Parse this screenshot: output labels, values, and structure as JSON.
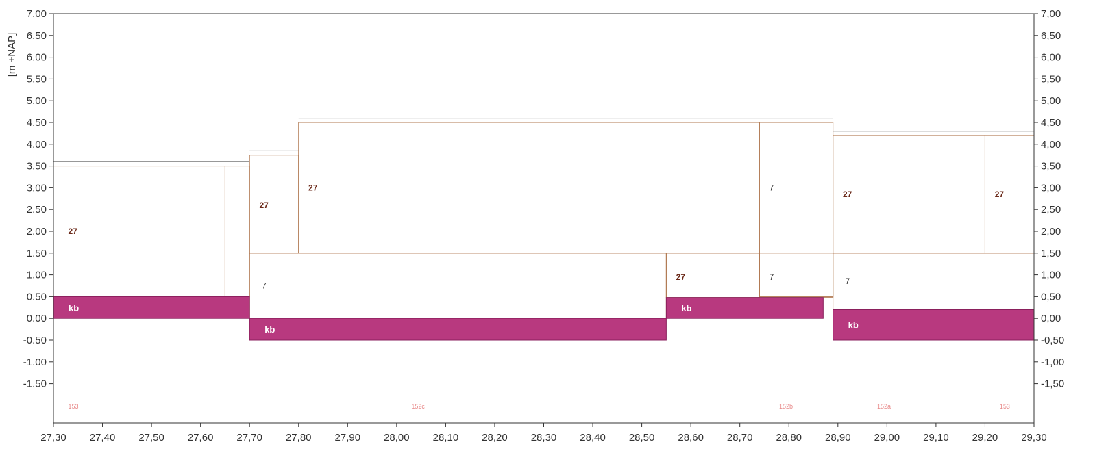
{
  "chart_data": {
    "type": "area",
    "title": "",
    "ylabel": "[m +NAP]",
    "xlim": [
      27.3,
      29.3
    ],
    "ylim": [
      -2.0,
      7.0
    ],
    "grid": false,
    "x_ticks": [
      "27,30",
      "27,40",
      "27,50",
      "27,60",
      "27,70",
      "27,80",
      "27,90",
      "28,00",
      "28,10",
      "28,20",
      "28,30",
      "28,40",
      "28,50",
      "28,60",
      "28,70",
      "28,80",
      "28,90",
      "29,00",
      "29,10",
      "29,20",
      "29,30"
    ],
    "y_ticks_left": [
      "7.00",
      "6.50",
      "6.00",
      "5.50",
      "5.00",
      "4.50",
      "4.00",
      "3.50",
      "3.00",
      "2.50",
      "2.00",
      "1.50",
      "1.00",
      "0.50",
      "0.00",
      "-0.50",
      "-1.00",
      "-1.50"
    ],
    "y_ticks_right": [
      "7,00",
      "6,50",
      "6,00",
      "5,50",
      "5,00",
      "4,50",
      "4,00",
      "3,50",
      "3,00",
      "2,50",
      "2,00",
      "1,50",
      "1,00",
      "0,50",
      "0,00",
      "-0,50",
      "-1,00",
      "-1,50"
    ],
    "layers": [
      {
        "label": "kb",
        "x_start": 27.3,
        "x_end": 27.7,
        "y_bottom": 0.0,
        "y_top": 0.5
      },
      {
        "label": "kb",
        "x_start": 27.7,
        "x_end": 28.55,
        "y_bottom": -0.5,
        "y_top": 0.0
      },
      {
        "label": "kb",
        "x_start": 28.55,
        "x_end": 28.87,
        "y_bottom": 0.0,
        "y_top": 0.48
      },
      {
        "label": "kb",
        "x_start": 28.89,
        "x_end": 29.3,
        "y_bottom": -0.5,
        "y_top": 0.2
      }
    ],
    "profile_cells": [
      {
        "x_start": 27.3,
        "x_end": 27.65,
        "y_bottom": 0.5,
        "y_top": 3.5
      },
      {
        "x_start": 27.65,
        "x_end": 27.7,
        "y_bottom": 0.5,
        "y_top": 3.5
      },
      {
        "x_start": 27.7,
        "x_end": 27.8,
        "y_bottom": 1.5,
        "y_top": 3.75
      },
      {
        "x_start": 27.8,
        "x_end": 28.74,
        "y_bottom": 1.5,
        "y_top": 4.5
      },
      {
        "x_start": 28.74,
        "x_end": 28.89,
        "y_bottom": 0.5,
        "y_top": 4.5
      },
      {
        "x_start": 28.89,
        "x_end": 29.2,
        "y_bottom": 1.5,
        "y_top": 4.2
      },
      {
        "x_start": 29.2,
        "x_end": 29.3,
        "y_bottom": 1.5,
        "y_top": 4.2
      },
      {
        "x_start": 27.7,
        "x_end": 28.55,
        "y_bottom": 0.0,
        "y_top": 1.5
      },
      {
        "x_start": 28.55,
        "x_end": 28.74,
        "y_bottom": 0.48,
        "y_top": 1.5
      },
      {
        "x_start": 28.74,
        "x_end": 28.89,
        "y_bottom": 0.48,
        "y_top": 1.5
      },
      {
        "x_start": 28.89,
        "x_end": 29.3,
        "y_bottom": 0.2,
        "y_top": 1.5
      }
    ],
    "surface_lines": [
      {
        "x_start": 27.3,
        "x_end": 27.7,
        "y": 3.6
      },
      {
        "x_start": 27.7,
        "x_end": 27.8,
        "y": 3.85
      },
      {
        "x_start": 27.8,
        "x_end": 28.89,
        "y": 4.6
      },
      {
        "x_start": 28.89,
        "x_end": 29.3,
        "y": 4.3
      }
    ],
    "annotations": [
      {
        "text": "27",
        "x": 27.33,
        "y": 2.0,
        "style": "dark"
      },
      {
        "text": "27",
        "x": 27.72,
        "y": 2.6,
        "style": "dark"
      },
      {
        "text": "27",
        "x": 27.82,
        "y": 3.0,
        "style": "dark"
      },
      {
        "text": "7",
        "x": 28.76,
        "y": 3.0,
        "style": "plain"
      },
      {
        "text": "27",
        "x": 28.91,
        "y": 2.85,
        "style": "dark"
      },
      {
        "text": "27",
        "x": 29.22,
        "y": 2.85,
        "style": "dark"
      },
      {
        "text": "7",
        "x": 27.725,
        "y": 0.75,
        "style": "plain"
      },
      {
        "text": "27",
        "x": 28.57,
        "y": 0.95,
        "style": "dark"
      },
      {
        "text": "7",
        "x": 28.76,
        "y": 0.95,
        "style": "plain"
      },
      {
        "text": "7",
        "x": 28.915,
        "y": 0.85,
        "style": "plain"
      },
      {
        "text": "153",
        "x": 27.33,
        "y": -2.01,
        "style": "section"
      },
      {
        "text": "152c",
        "x": 28.03,
        "y": -2.01,
        "style": "section"
      },
      {
        "text": "152b",
        "x": 28.78,
        "y": -2.01,
        "style": "section"
      },
      {
        "text": "152a",
        "x": 28.98,
        "y": -2.01,
        "style": "section"
      },
      {
        "text": "153",
        "x": 29.23,
        "y": -2.01,
        "style": "section"
      }
    ],
    "colors": {
      "kb_fill": "#b8397f",
      "kb_edge": "#8a1f5c",
      "profile_line": "#c8a080",
      "divider_line": "#b07850",
      "surface_line": "#777777",
      "axis": "#333333"
    }
  }
}
